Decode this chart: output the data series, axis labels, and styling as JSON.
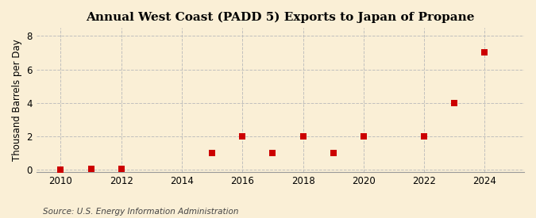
{
  "title": "Annual West Coast (PADD 5) Exports to Japan of Propane",
  "ylabel": "Thousand Barrels per Day",
  "source": "Source: U.S. Energy Information Administration",
  "background_color": "#faefd6",
  "x_data": [
    2010,
    2011,
    2012,
    2015,
    2016,
    2017,
    2018,
    2019,
    2020,
    2022,
    2023,
    2024
  ],
  "y_data": [
    0.0,
    0.05,
    0.05,
    1.0,
    2.0,
    1.0,
    2.0,
    1.0,
    2.0,
    2.0,
    4.0,
    7.0
  ],
  "marker_color": "#cc0000",
  "marker_size": 28,
  "marker_style": "s",
  "xlim": [
    2009.2,
    2025.3
  ],
  "ylim": [
    -0.15,
    8.5
  ],
  "yticks": [
    0,
    2,
    4,
    6,
    8
  ],
  "xticks": [
    2010,
    2012,
    2014,
    2016,
    2018,
    2020,
    2022,
    2024
  ],
  "grid_color": "#bbbbbb",
  "grid_linestyle": "--",
  "grid_alpha": 0.9,
  "grid_linewidth": 0.7,
  "title_fontsize": 11,
  "label_fontsize": 8.5,
  "tick_fontsize": 8.5,
  "source_fontsize": 7.5
}
